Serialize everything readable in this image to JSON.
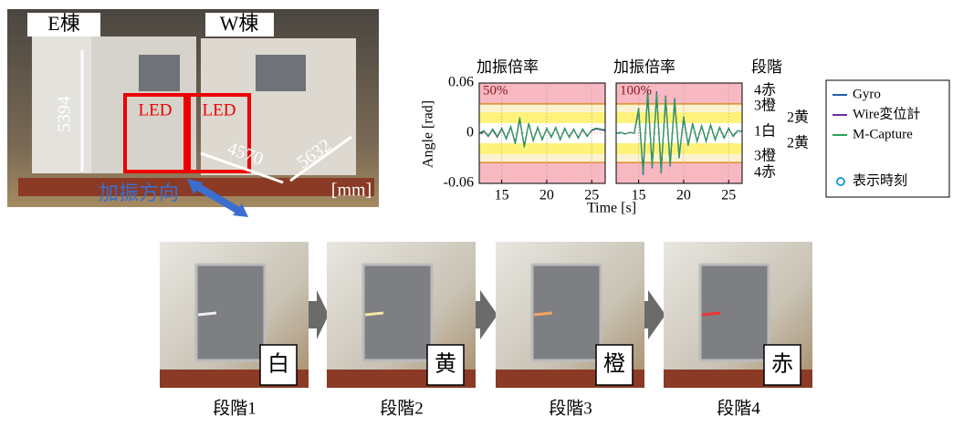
{
  "photo": {
    "buildings": [
      "E棟",
      "W棟"
    ],
    "led": [
      "LED",
      "LED"
    ],
    "dims": [
      "5394",
      "4570",
      "5632"
    ],
    "unit": "[mm]",
    "direction": "加振方向"
  },
  "chart_data": {
    "type": "line",
    "ylabel": "Angle [rad]",
    "xlabel": "Time [s]",
    "ylim": [
      -0.06,
      0.06
    ],
    "yticks": [
      0.06,
      0,
      -0.06
    ],
    "xlim": [
      12.5,
      26.5
    ],
    "xticks": [
      15,
      20,
      25
    ],
    "band_limits": {
      "red": 0.035,
      "yellow": 0.025,
      "white": 0.012
    },
    "levels": {
      "title": "段階",
      "labels": [
        "4赤",
        "3橙",
        "2黄",
        "1白",
        "2黄",
        "3橙",
        "4赤"
      ]
    },
    "marker_legend": "表示時刻",
    "panels": [
      {
        "title": "加振倍率",
        "annotation": "50%",
        "x": [
          12.5,
          13,
          13.5,
          14,
          14.5,
          15,
          15.5,
          16,
          16.5,
          17,
          17.5,
          18,
          18.5,
          19,
          19.5,
          20,
          20.5,
          21,
          21.5,
          22,
          22.5,
          23,
          23.5,
          24,
          24.5,
          25,
          25.5,
          26,
          26.5
        ],
        "series": [
          {
            "name": "Gyro",
            "color": "#1f5fa8",
            "values": [
              0,
              0.003,
              -0.004,
              0.005,
              -0.004,
              0.006,
              -0.007,
              0.008,
              -0.012,
              0.018,
              -0.016,
              0.012,
              -0.009,
              0.007,
              -0.008,
              0.006,
              -0.005,
              0.007,
              -0.008,
              0.006,
              -0.005,
              0.005,
              -0.006,
              0.005,
              -0.004,
              0.004,
              0.006,
              0.005,
              0.004
            ]
          },
          {
            "name": "Wire変位計",
            "color": "#7030a0",
            "values": [
              0,
              0.002,
              -0.003,
              0.004,
              -0.005,
              0.005,
              -0.006,
              0.007,
              -0.011,
              0.016,
              -0.015,
              0.011,
              -0.008,
              0.006,
              -0.007,
              0.005,
              -0.004,
              0.006,
              -0.007,
              0.005,
              -0.004,
              0.004,
              -0.005,
              0.004,
              -0.003,
              0.003,
              0.005,
              0.004,
              0.003
            ]
          },
          {
            "name": "M-Capture",
            "color": "#2ca05a",
            "values": [
              0,
              0.003,
              -0.003,
              0.005,
              -0.004,
              0.006,
              -0.006,
              0.008,
              -0.013,
              0.019,
              -0.017,
              0.012,
              -0.009,
              0.007,
              -0.008,
              0.006,
              -0.005,
              0.007,
              -0.008,
              0.006,
              -0.005,
              0.005,
              -0.006,
              0.005,
              -0.004,
              0.004,
              0.006,
              0.005,
              0.004
            ]
          }
        ]
      },
      {
        "title": "加振倍率",
        "annotation": "100%",
        "x": [
          12.5,
          13,
          13.5,
          14,
          14.5,
          15,
          15.5,
          16,
          16.5,
          17,
          17.5,
          18,
          18.5,
          19,
          19.5,
          20,
          20.5,
          21,
          21.5,
          22,
          22.5,
          23,
          23.5,
          24,
          24.5,
          25,
          25.5,
          26,
          26.5
        ],
        "series": [
          {
            "name": "Gyro",
            "color": "#1f5fa8",
            "values": [
              0,
              0.001,
              -0.001,
              0.001,
              0,
              0.03,
              -0.05,
              0.052,
              -0.042,
              0.05,
              -0.048,
              0.045,
              -0.04,
              0.042,
              -0.03,
              0.02,
              -0.015,
              0.012,
              -0.01,
              0.009,
              -0.01,
              0.01,
              -0.008,
              0.007,
              -0.006,
              0.006,
              -0.004,
              0.003,
              0.002
            ]
          },
          {
            "name": "Wire変位計",
            "color": "#7030a0",
            "values": [
              0,
              0.001,
              -0.001,
              0.001,
              0,
              0.026,
              -0.043,
              0.044,
              -0.036,
              0.043,
              -0.041,
              0.038,
              -0.034,
              0.036,
              -0.026,
              0.017,
              -0.013,
              0.01,
              -0.009,
              0.008,
              -0.009,
              0.009,
              -0.007,
              0.006,
              -0.005,
              0.005,
              -0.003,
              0.003,
              0.002
            ]
          },
          {
            "name": "M-Capture",
            "color": "#2ca05a",
            "values": [
              0,
              0.001,
              -0.001,
              0.001,
              0,
              0.029,
              -0.047,
              0.049,
              -0.04,
              0.047,
              -0.046,
              0.043,
              -0.038,
              0.04,
              -0.028,
              0.019,
              -0.014,
              0.011,
              -0.01,
              0.009,
              -0.009,
              0.01,
              -0.008,
              0.007,
              -0.006,
              0.006,
              -0.004,
              0.003,
              0.002
            ]
          }
        ]
      }
    ]
  },
  "stages": [
    {
      "badge": "白",
      "caption": "段階1"
    },
    {
      "badge": "黄",
      "caption": "段階2"
    },
    {
      "badge": "橙",
      "caption": "段階3"
    },
    {
      "badge": "赤",
      "caption": "段階4"
    }
  ]
}
